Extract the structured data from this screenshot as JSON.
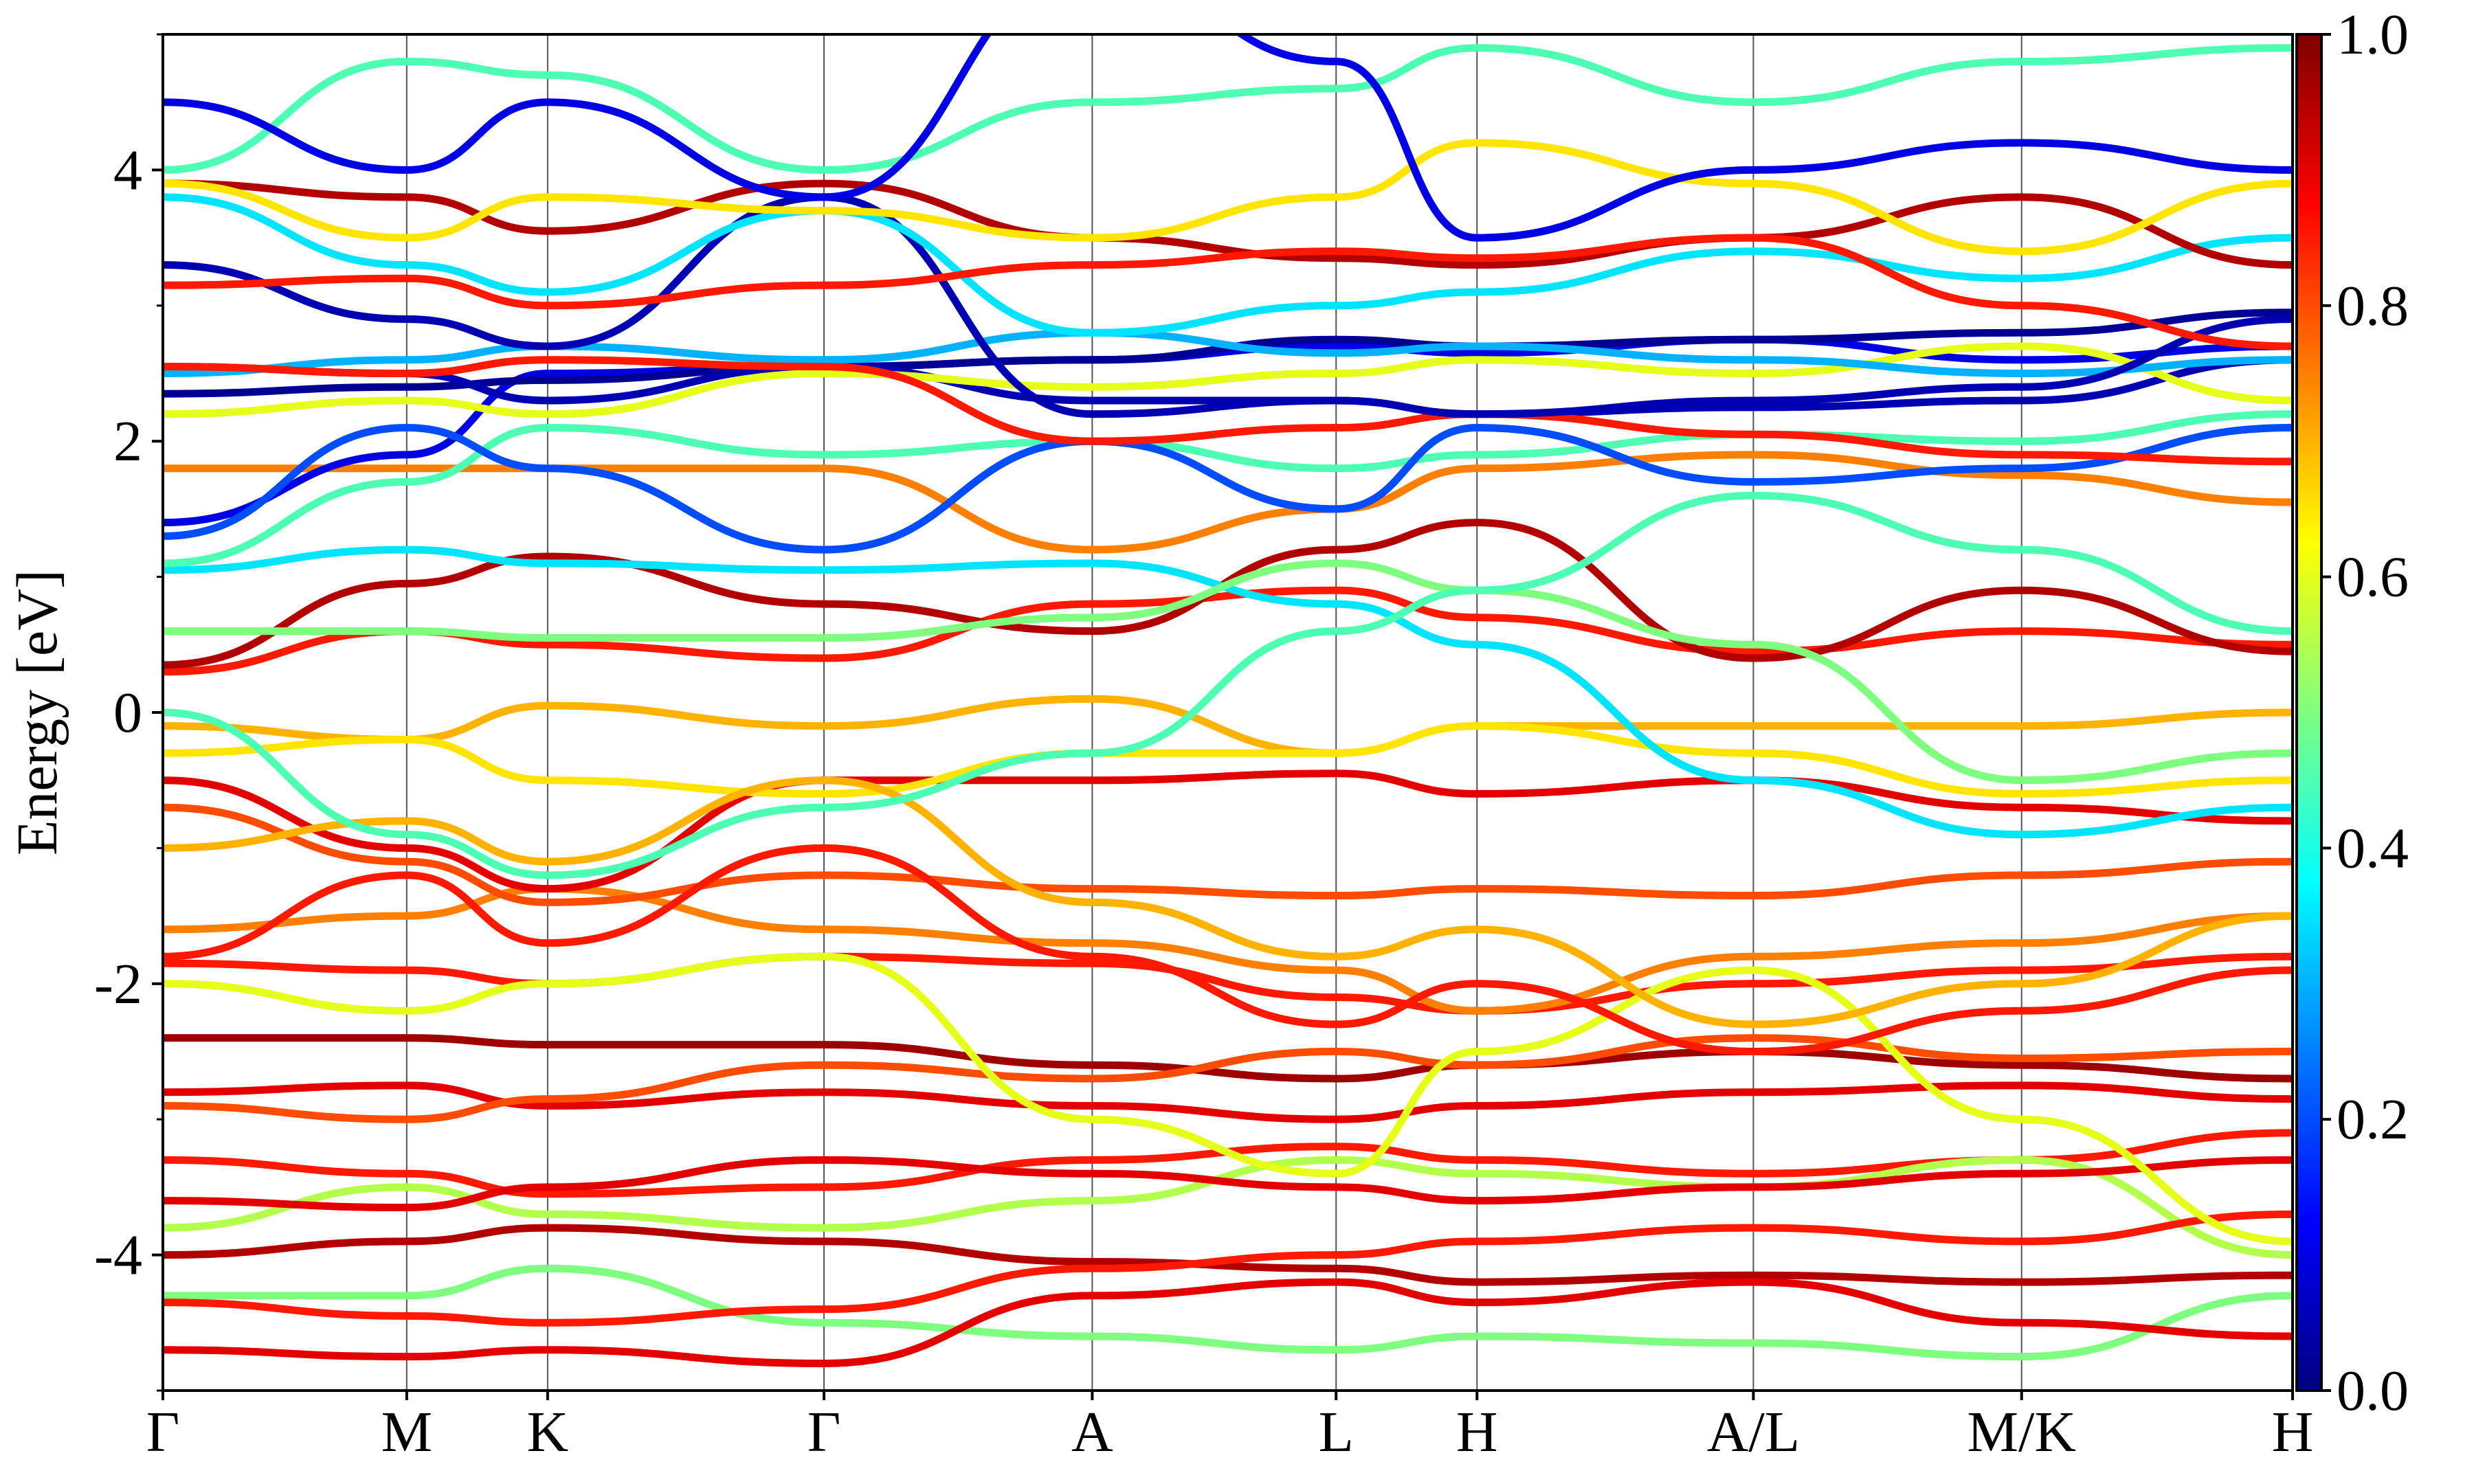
{
  "chart_data": {
    "type": "line",
    "title": "",
    "xlabel": "",
    "ylabel": "Energy [eV]",
    "ylim": [
      -5,
      5
    ],
    "yticks": [
      {
        "value": 4,
        "label": "4"
      },
      {
        "value": 2,
        "label": "2"
      },
      {
        "value": 0,
        "label": "0"
      },
      {
        "value": -2,
        "label": "-2"
      },
      {
        "value": -4,
        "label": "-4"
      }
    ],
    "kpath_distance_range": [
      0,
      7.86
    ],
    "kpoints": [
      {
        "label": "Γ",
        "x": 0.0
      },
      {
        "label": "M",
        "x": 0.9
      },
      {
        "label": "K",
        "x": 1.42
      },
      {
        "label": "Γ",
        "x": 2.44
      },
      {
        "label": "A",
        "x": 3.43
      },
      {
        "label": "L",
        "x": 4.33
      },
      {
        "label": "H",
        "x": 4.85
      },
      {
        "label": "A/L",
        "x": 5.87
      },
      {
        "label": "M/K",
        "x": 6.86
      },
      {
        "label": "H",
        "x": 7.86
      }
    ],
    "colorbar": {
      "colormap": "jet",
      "range": [
        0.0,
        1.0
      ],
      "ticks": [
        {
          "value": 0.0,
          "label": "0.0"
        },
        {
          "value": 0.2,
          "label": "0.2"
        },
        {
          "value": 0.4,
          "label": "0.4"
        },
        {
          "value": 0.6,
          "label": "0.6"
        },
        {
          "value": 0.8,
          "label": "0.8"
        },
        {
          "value": 1.0,
          "label": "1.0"
        }
      ]
    },
    "colors": {
      "jet": [
        "#00007f",
        "#0000ff",
        "#007fff",
        "#00ffff",
        "#7fff7f",
        "#ffff00",
        "#ff7f00",
        "#ff0000",
        "#7f0000"
      ]
    },
    "bands": [
      {
        "weight": 0.95,
        "E": [
          -4.0,
          -3.9,
          -3.8,
          -3.9,
          -4.05,
          -4.1,
          -4.2,
          -4.15,
          -4.2,
          -4.15
        ]
      },
      {
        "weight": 0.85,
        "E": [
          -3.3,
          -3.4,
          -3.55,
          -3.5,
          -3.3,
          -3.2,
          -3.3,
          -3.4,
          -3.3,
          -3.1
        ]
      },
      {
        "weight": 0.9,
        "E": [
          -2.8,
          -2.75,
          -2.9,
          -2.8,
          -2.9,
          -3.0,
          -2.9,
          -2.8,
          -2.75,
          -2.85
        ]
      },
      {
        "weight": 0.97,
        "E": [
          -2.4,
          -2.4,
          -2.45,
          -2.45,
          -2.6,
          -2.7,
          -2.6,
          -2.5,
          -2.6,
          -2.7
        ]
      },
      {
        "weight": 0.85,
        "E": [
          -1.85,
          -1.9,
          -2.0,
          -1.8,
          -1.85,
          -2.1,
          -2.2,
          -2.0,
          -1.9,
          -1.8
        ]
      },
      {
        "weight": 0.75,
        "E": [
          -1.6,
          -1.5,
          -1.3,
          -1.6,
          -1.7,
          -1.9,
          -2.2,
          -1.8,
          -1.7,
          -1.5
        ]
      },
      {
        "weight": 0.9,
        "E": [
          -0.5,
          -1.0,
          -1.3,
          -0.5,
          -0.5,
          -0.45,
          -0.6,
          -0.5,
          -0.7,
          -0.8
        ]
      },
      {
        "weight": 0.8,
        "E": [
          -0.7,
          -1.1,
          -1.4,
          -1.2,
          -1.3,
          -1.35,
          -1.3,
          -1.35,
          -1.2,
          -1.1
        ]
      },
      {
        "weight": 0.7,
        "E": [
          -0.1,
          -0.2,
          0.05,
          -0.1,
          0.1,
          -0.3,
          -0.1,
          -0.1,
          -0.1,
          0.0
        ]
      },
      {
        "weight": 0.85,
        "E": [
          0.3,
          0.6,
          0.5,
          0.4,
          0.8,
          0.9,
          0.7,
          0.45,
          0.6,
          0.5
        ]
      },
      {
        "weight": 0.65,
        "E": [
          -0.3,
          -0.2,
          -0.5,
          -0.6,
          -0.3,
          -0.3,
          -0.1,
          -0.3,
          -0.6,
          -0.5
        ]
      },
      {
        "weight": 0.95,
        "E": [
          0.35,
          0.95,
          1.15,
          0.8,
          0.6,
          1.2,
          1.4,
          0.4,
          0.9,
          0.45
        ]
      },
      {
        "weight": 0.35,
        "E": [
          1.05,
          1.2,
          1.1,
          1.05,
          1.1,
          0.8,
          0.5,
          -0.5,
          -0.9,
          -0.7
        ]
      },
      {
        "weight": 0.5,
        "E": [
          0.6,
          0.6,
          0.55,
          0.55,
          0.7,
          1.1,
          0.9,
          0.5,
          -0.5,
          -0.3
        ]
      },
      {
        "weight": 0.75,
        "E": [
          1.8,
          1.8,
          1.8,
          1.8,
          1.2,
          1.5,
          1.8,
          1.9,
          1.75,
          1.55
        ]
      },
      {
        "weight": 0.45,
        "E": [
          1.1,
          1.7,
          2.1,
          1.9,
          2.0,
          1.8,
          1.9,
          2.05,
          2.0,
          2.2
        ]
      },
      {
        "weight": 0.1,
        "E": [
          1.4,
          1.9,
          2.5,
          2.55,
          2.6,
          2.7,
          2.65,
          2.75,
          2.6,
          2.7
        ]
      },
      {
        "weight": 0.2,
        "E": [
          1.3,
          2.1,
          1.8,
          1.2,
          2.0,
          1.5,
          2.1,
          1.7,
          1.8,
          2.1
        ]
      },
      {
        "weight": 0.02,
        "E": [
          2.35,
          2.4,
          2.45,
          2.55,
          2.6,
          2.75,
          2.7,
          2.75,
          2.8,
          2.95
        ]
      },
      {
        "weight": 0.05,
        "E": [
          2.55,
          2.5,
          2.3,
          2.55,
          2.3,
          2.3,
          2.2,
          2.25,
          2.3,
          2.6
        ]
      },
      {
        "weight": 0.6,
        "E": [
          2.2,
          2.3,
          2.2,
          2.5,
          2.4,
          2.5,
          2.6,
          2.5,
          2.7,
          2.3
        ]
      },
      {
        "weight": 0.3,
        "E": [
          2.5,
          2.6,
          2.7,
          2.6,
          2.8,
          2.65,
          2.7,
          2.6,
          2.5,
          2.6
        ]
      },
      {
        "weight": 0.85,
        "E": [
          2.55,
          2.5,
          2.6,
          2.55,
          2.0,
          2.1,
          2.2,
          2.05,
          1.9,
          1.85
        ]
      },
      {
        "weight": 0.05,
        "E": [
          3.3,
          2.9,
          2.7,
          3.8,
          2.2,
          2.3,
          2.2,
          2.3,
          2.4,
          2.9
        ]
      },
      {
        "weight": 0.35,
        "E": [
          3.8,
          3.3,
          3.1,
          3.7,
          2.8,
          3.0,
          3.1,
          3.4,
          3.2,
          3.5
        ]
      },
      {
        "weight": 0.95,
        "E": [
          3.9,
          3.8,
          3.55,
          3.9,
          3.5,
          3.35,
          3.3,
          3.5,
          3.8,
          3.3
        ]
      },
      {
        "weight": 0.85,
        "E": [
          3.15,
          3.2,
          3.0,
          3.15,
          3.3,
          3.4,
          3.35,
          3.5,
          3.0,
          2.7
        ]
      },
      {
        "weight": 0.65,
        "E": [
          3.9,
          3.5,
          3.8,
          3.7,
          3.5,
          3.8,
          4.2,
          3.9,
          3.4,
          3.9
        ]
      },
      {
        "weight": 0.45,
        "E": [
          4.0,
          4.8,
          4.7,
          4.0,
          4.5,
          4.6,
          4.9,
          4.5,
          4.8,
          4.9
        ]
      },
      {
        "weight": 0.1,
        "E": [
          4.5,
          4.0,
          4.5,
          3.8,
          5.5,
          4.8,
          3.5,
          4.0,
          4.2,
          4.0
        ]
      },
      {
        "weight": 0.55,
        "E": [
          -3.8,
          -3.5,
          -3.7,
          -3.8,
          -3.6,
          -3.3,
          -3.4,
          -3.5,
          -3.3,
          -4.0
        ]
      },
      {
        "weight": 0.5,
        "E": [
          -4.3,
          -4.3,
          -4.1,
          -4.5,
          -4.6,
          -4.7,
          -4.6,
          -4.65,
          -4.75,
          -4.3
        ]
      },
      {
        "weight": 0.9,
        "E": [
          -4.7,
          -4.75,
          -4.7,
          -4.8,
          -4.3,
          -4.2,
          -4.35,
          -4.2,
          -4.5,
          -4.6
        ]
      },
      {
        "weight": 0.85,
        "E": [
          -4.35,
          -4.45,
          -4.5,
          -4.4,
          -4.1,
          -4.0,
          -3.9,
          -3.8,
          -3.9,
          -3.7
        ]
      },
      {
        "weight": 0.9,
        "E": [
          -3.6,
          -3.65,
          -3.5,
          -3.3,
          -3.4,
          -3.5,
          -3.6,
          -3.5,
          -3.4,
          -3.3
        ]
      },
      {
        "weight": 0.8,
        "E": [
          -2.9,
          -3.0,
          -2.85,
          -2.6,
          -2.7,
          -2.5,
          -2.6,
          -2.4,
          -2.55,
          -2.5
        ]
      },
      {
        "weight": 0.6,
        "E": [
          -2.0,
          -2.2,
          -2.0,
          -1.8,
          -3.0,
          -3.4,
          -2.5,
          -1.9,
          -3.0,
          -3.9
        ]
      },
      {
        "weight": 0.7,
        "E": [
          -1.0,
          -0.8,
          -1.1,
          -0.5,
          -1.4,
          -1.8,
          -1.6,
          -2.3,
          -2.0,
          -1.5
        ]
      },
      {
        "weight": 0.45,
        "E": [
          0.0,
          -0.9,
          -1.2,
          -0.7,
          -0.3,
          0.6,
          0.9,
          1.6,
          1.2,
          0.6
        ]
      },
      {
        "weight": 0.85,
        "E": [
          -1.8,
          -1.2,
          -1.7,
          -1.0,
          -1.8,
          -2.3,
          -2.0,
          -2.5,
          -2.2,
          -1.9
        ]
      }
    ]
  }
}
